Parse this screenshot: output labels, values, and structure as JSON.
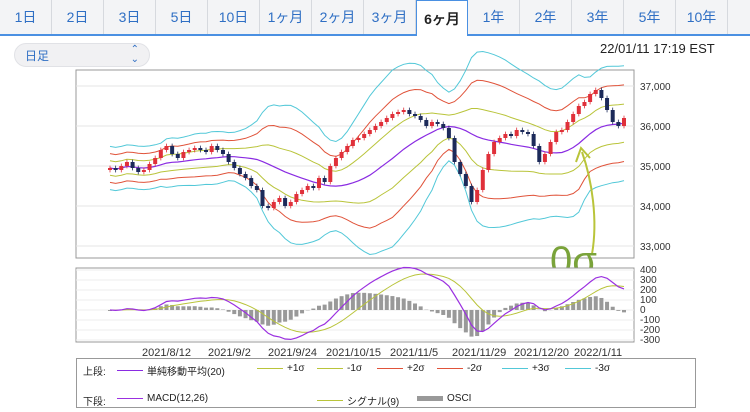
{
  "tabs": [
    {
      "label": "1日",
      "active": false
    },
    {
      "label": "2日",
      "active": false
    },
    {
      "label": "3日",
      "active": false
    },
    {
      "label": "5日",
      "active": false
    },
    {
      "label": "10日",
      "active": false
    },
    {
      "label": "1ヶ月",
      "active": false
    },
    {
      "label": "2ヶ月",
      "active": false
    },
    {
      "label": "3ヶ月",
      "active": false
    },
    {
      "label": "6ヶ月",
      "active": true
    },
    {
      "label": "1年",
      "active": false
    },
    {
      "label": "2年",
      "active": false
    },
    {
      "label": "3年",
      "active": false
    },
    {
      "label": "5年",
      "active": false
    },
    {
      "label": "10年",
      "active": false
    }
  ],
  "selector": {
    "value": "日足"
  },
  "timestamp": "22/01/11 17:19 EST",
  "annotation": {
    "text": "0σ",
    "color": "#7aa33a"
  },
  "colors": {
    "up": "#e0303a",
    "down": "#1c2a5a",
    "ma": "#8a2be2",
    "sigma1": "#b9c43a",
    "sigma2": "#e0533a",
    "sigma3": "#52c8d8",
    "macd": "#9b30e0",
    "signal": "#b9c43a",
    "osci": "#999999"
  },
  "chart_data": {
    "type": "candlestick",
    "x_tick_labels": [
      "2021/8/12",
      "2021/9/2",
      "2021/9/24",
      "2021/10/15",
      "2021/11/5",
      "2021/11/29",
      "2021/12/20",
      "2022/1/11"
    ],
    "upper": {
      "y_ticks": [
        33000,
        34000,
        35000,
        36000,
        37000
      ],
      "y_tick_labels": [
        "33,000",
        "34,000",
        "35,000",
        "36,000",
        "37,000"
      ],
      "ylim": [
        32700,
        37400
      ],
      "close": [
        34950,
        34900,
        35000,
        35100,
        34950,
        34850,
        34900,
        35050,
        35200,
        35400,
        35500,
        35300,
        35200,
        35350,
        35400,
        35450,
        35400,
        35350,
        35500,
        35400,
        35300,
        35100,
        34950,
        34800,
        34700,
        34500,
        34400,
        34000,
        33950,
        34100,
        34200,
        34000,
        34100,
        34300,
        34400,
        34500,
        34450,
        34700,
        34600,
        35000,
        35200,
        35350,
        35500,
        35650,
        35700,
        35800,
        35900,
        36000,
        36100,
        36200,
        36300,
        36350,
        36400,
        36300,
        36250,
        36150,
        36000,
        36100,
        36050,
        35950,
        35700,
        35100,
        34800,
        34500,
        34100,
        34400,
        34900,
        35300,
        35600,
        35700,
        35800,
        35750,
        35900,
        35850,
        35800,
        35500,
        35100,
        35300,
        35600,
        35850,
        35900,
        36100,
        36300,
        36500,
        36600,
        36800,
        36900,
        36700,
        36400,
        36100,
        36000,
        36200
      ],
      "labels": {
        "ma": "単純移動平均(20)",
        "p1": "+1σ",
        "m1": "-1σ",
        "p2": "+2σ",
        "m2": "-2σ",
        "p3": "+3σ",
        "m3": "-3σ"
      }
    },
    "lower": {
      "y_ticks": [
        -300,
        -200,
        -100,
        0,
        100,
        200,
        300,
        400
      ],
      "y_tick_labels": [
        "-300",
        "-200",
        "-100",
        "0",
        "100",
        "200",
        "300",
        "400"
      ],
      "ylim": [
        -320,
        420
      ],
      "labels": {
        "macd": "MACD(12,26)",
        "signal": "シグナル(9)",
        "osci": "OSCI"
      }
    }
  },
  "legend": {
    "upper_title": "上段:",
    "lower_title": "下段:"
  }
}
